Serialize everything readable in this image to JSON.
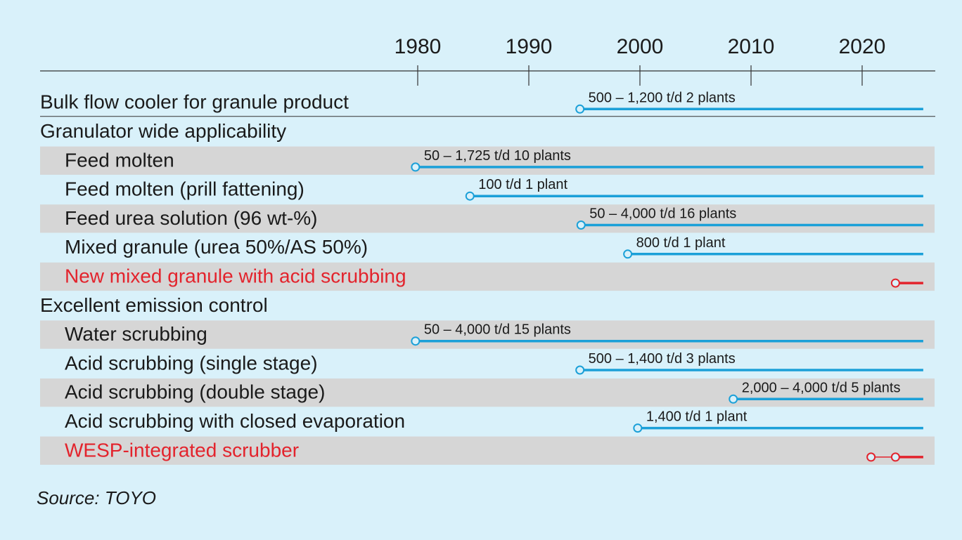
{
  "source": "Source: TOYO",
  "colors": {
    "background": "#d9f1fa",
    "band": "#d6d6d6",
    "bar": "#1ba0d8",
    "highlight": "#e3232c",
    "axis": "#333333"
  },
  "chart_data": {
    "type": "timeline",
    "x_ticks": [
      1980,
      1990,
      2000,
      2010,
      2020
    ],
    "x_range": [
      1946,
      2026.5
    ],
    "end_year": 2025.5,
    "rows": [
      {
        "kind": "item",
        "label": "Bulk flow cooler for granule product",
        "start": 1994.6,
        "text": "500 – 1,200 t/d  2 plants",
        "shaded": false,
        "highlight": false
      },
      {
        "kind": "group",
        "label": "Granulator wide applicability"
      },
      {
        "kind": "item",
        "label": "Feed molten",
        "start": 1979.8,
        "text": "50 – 1,725 t/d  10 plants",
        "shaded": true,
        "highlight": false
      },
      {
        "kind": "item",
        "label": "Feed molten (prill fattening)",
        "start": 1984.7,
        "text": "100 t/d  1 plant",
        "shaded": false,
        "highlight": false
      },
      {
        "kind": "item",
        "label": "Feed urea solution (96 wt-%)",
        "start": 1994.7,
        "text": "50 – 4,000 t/d  16 plants",
        "shaded": true,
        "highlight": false
      },
      {
        "kind": "item",
        "label": "Mixed granule (urea 50%/AS 50%)",
        "start": 1998.9,
        "text": "800 t/d  1 plant",
        "shaded": false,
        "highlight": false
      },
      {
        "kind": "item",
        "label": "New mixed granule with acid scrubbing",
        "start": 2023,
        "text": "",
        "shaded": true,
        "highlight": true
      },
      {
        "kind": "group",
        "label": "Excellent emission control"
      },
      {
        "kind": "item",
        "label": "Water scrubbing",
        "start": 1979.8,
        "text": "50 – 4,000 t/d  15 plants",
        "shaded": true,
        "highlight": false
      },
      {
        "kind": "item",
        "label": "Acid scrubbing (single stage)",
        "start": 1994.6,
        "text": "500 – 1,400 t/d  3 plants",
        "shaded": false,
        "highlight": false
      },
      {
        "kind": "item",
        "label": "Acid scrubbing (double stage)",
        "start": 2008.4,
        "text": "2,000 – 4,000 t/d  5 plants",
        "shaded": true,
        "highlight": false
      },
      {
        "kind": "item",
        "label": "Acid scrubbing with closed evaporation",
        "start": 1999.8,
        "text": "1,400 t/d  1 plant",
        "shaded": false,
        "highlight": false
      },
      {
        "kind": "item",
        "label": "WESP-integrated scrubber",
        "start": 2020.8,
        "second_marker": 2023,
        "text": "",
        "shaded": true,
        "highlight": true
      }
    ]
  }
}
